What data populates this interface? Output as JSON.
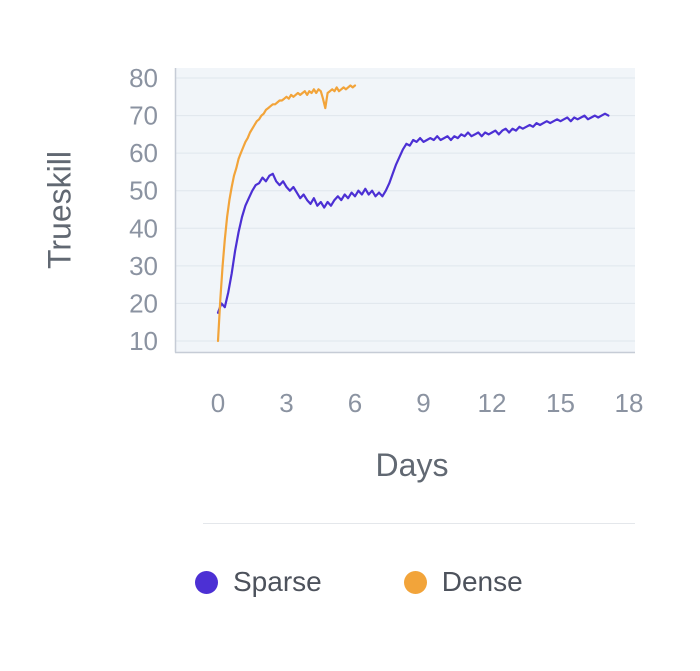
{
  "chart_data": {
    "type": "line",
    "title": "",
    "xlabel": "Days",
    "ylabel": "Trueskill",
    "xlim": [
      0,
      18
    ],
    "ylim": [
      10,
      80
    ],
    "xticks": [
      0,
      3,
      6,
      9,
      12,
      15,
      18
    ],
    "yticks": [
      10,
      20,
      30,
      40,
      50,
      60,
      70,
      80
    ],
    "grid": "horizontal",
    "plot_bg": "#f1f5f9",
    "grid_color": "#dfe6ed",
    "axis_color": "#c6ccd6",
    "tick_color": "#8b93a1",
    "label_color": "#616872",
    "legend_position": "bottom",
    "series": [
      {
        "name": "Sparse",
        "color": "#4c30d4",
        "x_start": 0,
        "x_step": 0.15,
        "y": [
          17.5,
          20,
          19,
          23,
          28,
          34,
          39,
          43,
          46,
          48,
          50,
          51.5,
          52,
          53.5,
          52.5,
          54,
          54.5,
          52.5,
          51.5,
          52.5,
          51,
          50,
          51,
          49.5,
          48,
          49,
          47.5,
          46.5,
          48,
          46,
          47,
          45.5,
          47,
          46,
          47.5,
          48.5,
          47.5,
          49,
          48,
          49.5,
          48.5,
          50,
          49,
          50.5,
          49,
          50,
          48.5,
          49.5,
          48.5,
          50,
          52,
          54.5,
          57,
          59,
          61,
          62.5,
          62,
          63.5,
          63,
          64,
          63,
          63.5,
          64,
          63.5,
          64.5,
          63.5,
          64,
          64.5,
          63.5,
          64.5,
          64,
          65,
          64.5,
          65.5,
          64.5,
          65,
          65.5,
          64.5,
          65.5,
          65,
          65.5,
          66,
          65,
          66,
          66.5,
          65.5,
          66.5,
          66,
          67,
          66.5,
          67,
          67.5,
          67,
          68,
          67.5,
          68,
          68.5,
          68,
          68.5,
          69,
          68.5,
          69,
          69.5,
          68.5,
          69.5,
          69,
          69.5,
          70,
          69,
          69.5,
          70,
          69.5,
          70,
          70.5,
          70
        ]
      },
      {
        "name": "Dense",
        "color": "#f2a43a",
        "x_start": 0,
        "x_step": 0.1,
        "y": [
          10,
          21,
          30,
          37,
          43,
          47.5,
          51,
          54,
          56,
          58.5,
          60,
          61.5,
          63,
          64,
          65.5,
          66.5,
          67.5,
          68.5,
          69,
          70,
          70.5,
          71.5,
          72,
          72.5,
          73,
          73,
          73.5,
          74,
          74,
          74.5,
          75,
          74.5,
          75.5,
          75,
          75.5,
          76,
          75.5,
          76,
          76.5,
          75.5,
          76.5,
          76,
          77,
          76,
          77,
          76.5,
          74.5,
          72,
          76,
          76.5,
          77,
          76.5,
          77.5,
          76.5,
          77,
          77.5,
          77,
          77.5,
          78,
          77.5,
          78
        ]
      }
    ]
  }
}
